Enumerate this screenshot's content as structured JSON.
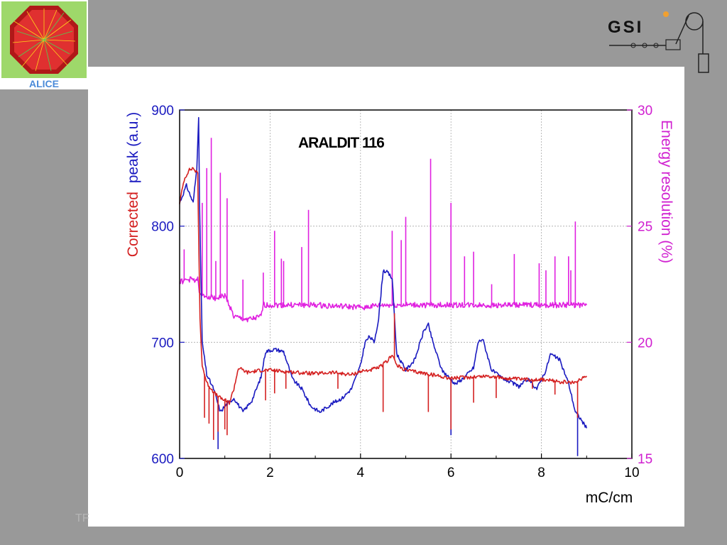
{
  "logos": {
    "alice_text": "ALICE",
    "gsi_text": "GSI"
  },
  "footer": {
    "text": "TF"
  },
  "chart_data": {
    "type": "line",
    "title": "ARALDIT 116",
    "xlabel": "mC/cm",
    "ylabel_left": {
      "part1": "Corrected",
      "part2": "peak (a.u.)"
    },
    "ylabel_right": "Energy resolution (%)",
    "xlim": [
      0,
      10
    ],
    "ylim_left": [
      600,
      900
    ],
    "ylim_right": [
      15,
      30
    ],
    "x_ticks": [
      "0",
      "2",
      "4",
      "6",
      "8",
      "10"
    ],
    "y_left_ticks": [
      "600",
      "700",
      "800",
      "900"
    ],
    "y_right_ticks": [
      "15",
      "20",
      "25",
      "30"
    ],
    "grid": true,
    "colors": {
      "red": "#d42020",
      "blue": "#1a1ac0",
      "magenta": "#e020e0"
    },
    "series": [
      {
        "axis": "left",
        "color": "red",
        "x": [
          0.0,
          0.1,
          0.2,
          0.3,
          0.4,
          0.45,
          0.5,
          0.6,
          0.7,
          0.8,
          0.9,
          1.0,
          1.1,
          1.2,
          1.3,
          1.5,
          1.8,
          2.0,
          2.3,
          2.6,
          3.0,
          3.4,
          3.8,
          4.0,
          4.2,
          4.4,
          4.6,
          4.7,
          4.8,
          5.0,
          5.3,
          5.6,
          6.0,
          6.4,
          6.8,
          7.2,
          7.6,
          8.0,
          8.4,
          8.7,
          9.0
        ],
        "values": [
          820,
          840,
          848,
          850,
          845,
          720,
          680,
          665,
          660,
          655,
          652,
          650,
          648,
          660,
          678,
          674,
          676,
          676,
          675,
          674,
          673,
          674,
          672,
          675,
          676,
          678,
          684,
          690,
          680,
          676,
          674,
          672,
          669,
          670,
          671,
          669,
          668,
          668,
          666,
          665,
          671
        ],
        "spikes": [
          {
            "x": 0.55,
            "y": 635
          },
          {
            "x": 0.65,
            "y": 630
          },
          {
            "x": 0.75,
            "y": 616
          },
          {
            "x": 0.85,
            "y": 623
          },
          {
            "x": 1.0,
            "y": 625
          },
          {
            "x": 1.05,
            "y": 620
          },
          {
            "x": 1.9,
            "y": 650
          },
          {
            "x": 2.1,
            "y": 656
          },
          {
            "x": 2.35,
            "y": 660
          },
          {
            "x": 3.5,
            "y": 660
          },
          {
            "x": 4.5,
            "y": 640
          },
          {
            "x": 4.75,
            "y": 725
          },
          {
            "x": 5.5,
            "y": 640
          },
          {
            "x": 6.0,
            "y": 625
          },
          {
            "x": 6.5,
            "y": 648
          },
          {
            "x": 7.0,
            "y": 652
          },
          {
            "x": 7.8,
            "y": 660
          },
          {
            "x": 8.3,
            "y": 655
          },
          {
            "x": 8.8,
            "y": 635
          }
        ]
      },
      {
        "axis": "left",
        "color": "blue",
        "x": [
          0.0,
          0.15,
          0.3,
          0.38,
          0.42,
          0.44,
          0.5,
          0.6,
          0.75,
          0.9,
          1.0,
          1.2,
          1.4,
          1.6,
          1.8,
          1.9,
          2.1,
          2.3,
          2.5,
          2.7,
          2.9,
          3.1,
          3.4,
          3.6,
          3.8,
          4.0,
          4.1,
          4.2,
          4.3,
          4.4,
          4.5,
          4.6,
          4.7,
          4.8,
          5.0,
          5.2,
          5.4,
          5.5,
          5.6,
          5.8,
          6.0,
          6.1,
          6.3,
          6.5,
          6.6,
          6.7,
          6.9,
          7.1,
          7.3,
          7.5,
          7.7,
          7.9,
          8.1,
          8.2,
          8.4,
          8.6,
          8.75,
          8.85,
          9.0
        ],
        "values": [
          820,
          835,
          820,
          850,
          895,
          820,
          700,
          672,
          660,
          640,
          645,
          652,
          640,
          650,
          670,
          692,
          694,
          692,
          668,
          660,
          645,
          640,
          648,
          652,
          660,
          680,
          700,
          705,
          700,
          720,
          762,
          760,
          755,
          690,
          676,
          685,
          710,
          715,
          700,
          676,
          668,
          664,
          670,
          678,
          700,
          703,
          676,
          670,
          666,
          662,
          668,
          660,
          676,
          690,
          685,
          665,
          640,
          635,
          626
        ],
        "spikes": [
          {
            "x": 0.85,
            "y": 608
          },
          {
            "x": 6.0,
            "y": 620
          },
          {
            "x": 8.8,
            "y": 602
          }
        ]
      },
      {
        "axis": "right",
        "color": "magenta",
        "x": [
          0.0,
          0.2,
          0.4,
          0.45,
          0.6,
          0.8,
          1.0,
          1.1,
          1.2,
          1.4,
          1.6,
          1.8,
          1.85,
          2.2,
          3.0,
          4.0,
          4.5,
          5.0,
          6.0,
          7.0,
          8.0,
          9.0
        ],
        "values": [
          22.6,
          22.7,
          22.7,
          22.0,
          22.0,
          21.9,
          22.0,
          21.6,
          21.1,
          21.0,
          21.0,
          21.1,
          21.6,
          21.6,
          21.6,
          21.5,
          21.6,
          21.6,
          21.6,
          21.6,
          21.6,
          21.6
        ],
        "spikes": [
          {
            "x": 0.1,
            "y": 24.0
          },
          {
            "x": 0.5,
            "y": 26.0
          },
          {
            "x": 0.6,
            "y": 27.5
          },
          {
            "x": 0.7,
            "y": 28.8
          },
          {
            "x": 0.8,
            "y": 23.5
          },
          {
            "x": 0.9,
            "y": 27.3
          },
          {
            "x": 1.05,
            "y": 26.2
          },
          {
            "x": 1.4,
            "y": 22.7
          },
          {
            "x": 1.85,
            "y": 23.0
          },
          {
            "x": 2.1,
            "y": 24.8
          },
          {
            "x": 2.25,
            "y": 23.6
          },
          {
            "x": 2.3,
            "y": 23.5
          },
          {
            "x": 2.7,
            "y": 24.1
          },
          {
            "x": 2.85,
            "y": 25.7
          },
          {
            "x": 4.7,
            "y": 24.8
          },
          {
            "x": 4.9,
            "y": 24.4
          },
          {
            "x": 5.0,
            "y": 25.4
          },
          {
            "x": 5.55,
            "y": 27.9
          },
          {
            "x": 6.0,
            "y": 26.0
          },
          {
            "x": 6.3,
            "y": 23.7
          },
          {
            "x": 6.5,
            "y": 23.9
          },
          {
            "x": 6.9,
            "y": 22.5
          },
          {
            "x": 7.4,
            "y": 23.8
          },
          {
            "x": 7.95,
            "y": 23.4
          },
          {
            "x": 8.1,
            "y": 23.1
          },
          {
            "x": 8.3,
            "y": 23.7
          },
          {
            "x": 8.6,
            "y": 23.7
          },
          {
            "x": 8.65,
            "y": 23.1
          },
          {
            "x": 8.75,
            "y": 25.2
          }
        ]
      }
    ]
  }
}
